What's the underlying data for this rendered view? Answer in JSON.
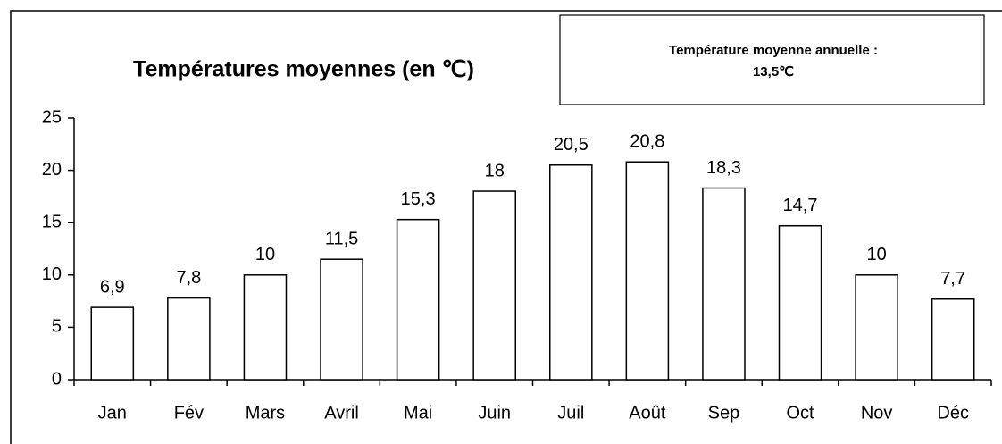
{
  "chart_data": {
    "type": "bar",
    "title": "Températures moyennes (en ℃)",
    "annotation": [
      "Température moyenne annuelle :",
      "13,5℃"
    ],
    "categories": [
      "Jan",
      "Fév",
      "Mars",
      "Avril",
      "Mai",
      "Juin",
      "Juil",
      "Août",
      "Sep",
      "Oct",
      "Nov",
      "Déc"
    ],
    "values": [
      6.9,
      7.8,
      10,
      11.5,
      15.3,
      18,
      20.5,
      20.8,
      18.3,
      14.7,
      10,
      7.7
    ],
    "value_labels": [
      "6,9",
      "7,8",
      "10",
      "11,5",
      "15,3",
      "18",
      "20,5",
      "20,8",
      "18,3",
      "14,7",
      "10",
      "7,7"
    ],
    "color": "#ffffff",
    "ylim": [
      0,
      25
    ],
    "yticks": [
      0,
      5,
      10,
      15,
      20,
      25
    ],
    "grid": false
  }
}
